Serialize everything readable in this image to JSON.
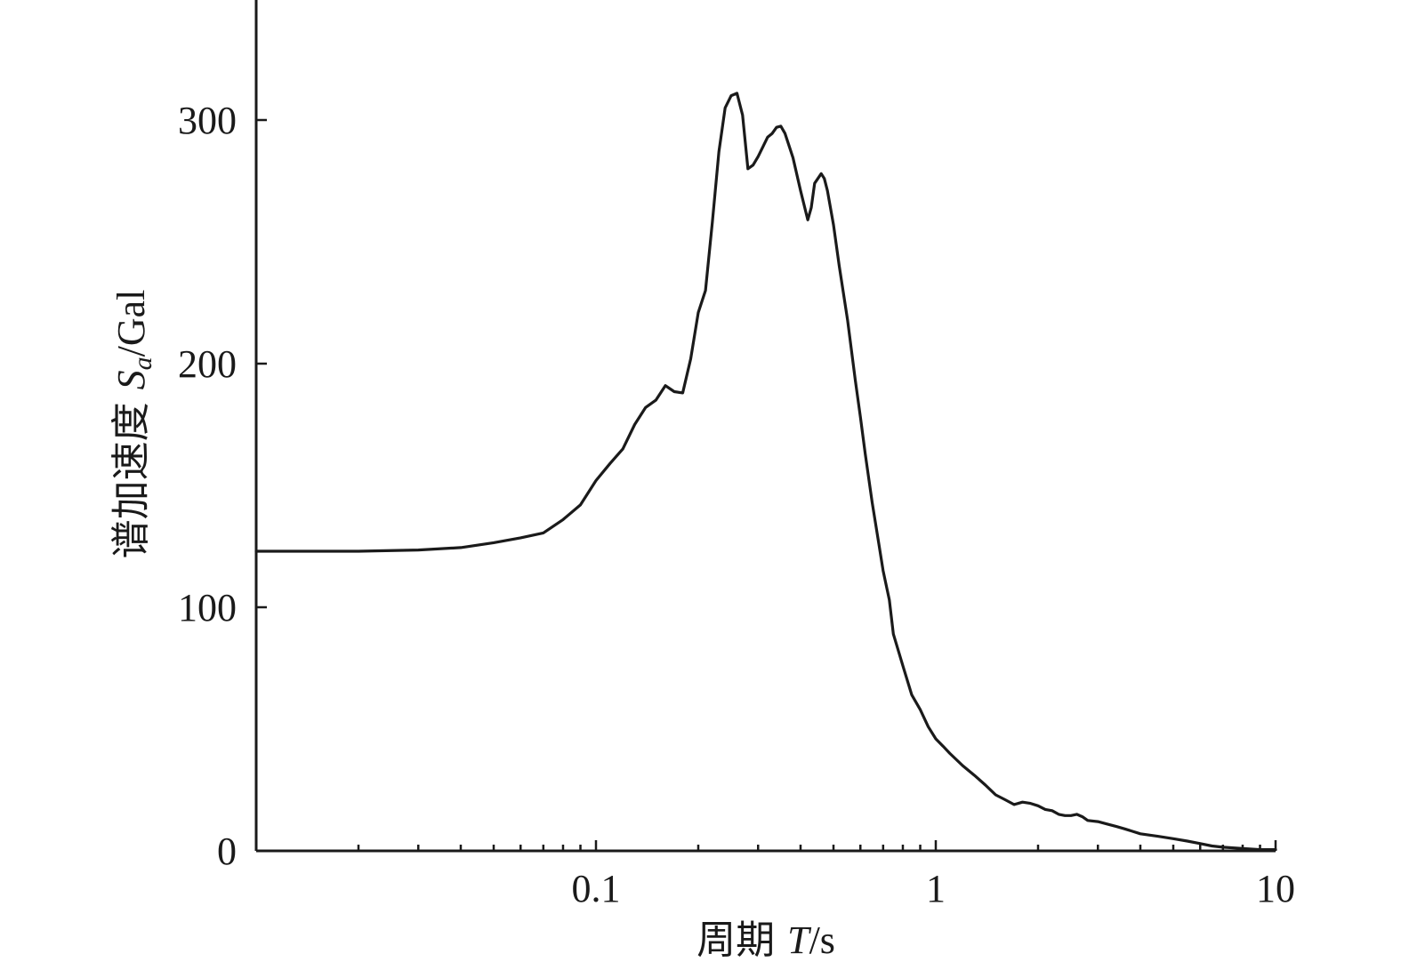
{
  "chart_data": {
    "type": "line",
    "x_scale": "log",
    "xlim": [
      0.01,
      10
    ],
    "ylim": [
      0,
      350
    ],
    "xlabel": {
      "main": "周期 ",
      "var": "T",
      "unit": "/s"
    },
    "ylabel": {
      "main": "谱加速度 ",
      "var": "S",
      "sub": "a",
      "unit": "/Gal"
    },
    "x_major_ticks": [
      {
        "value": 0.1,
        "label": "0.1"
      },
      {
        "value": 1,
        "label": "1"
      },
      {
        "value": 10,
        "label": "10"
      }
    ],
    "y_ticks": [
      {
        "value": 0,
        "label": "0"
      },
      {
        "value": 100,
        "label": "100"
      },
      {
        "value": 200,
        "label": "200"
      },
      {
        "value": 300,
        "label": "300"
      }
    ],
    "grid": false,
    "series": [
      {
        "points": [
          [
            0.01,
            123
          ],
          [
            0.02,
            123
          ],
          [
            0.03,
            123.5
          ],
          [
            0.04,
            124.5
          ],
          [
            0.05,
            126.5
          ],
          [
            0.06,
            128.5
          ],
          [
            0.07,
            130.5
          ],
          [
            0.08,
            136
          ],
          [
            0.09,
            142
          ],
          [
            0.1,
            152
          ],
          [
            0.11,
            159
          ],
          [
            0.12,
            165
          ],
          [
            0.13,
            175
          ],
          [
            0.14,
            182
          ],
          [
            0.15,
            185
          ],
          [
            0.16,
            191
          ],
          [
            0.17,
            188.5
          ],
          [
            0.18,
            188
          ],
          [
            0.19,
            202
          ],
          [
            0.2,
            221
          ],
          [
            0.21,
            230
          ],
          [
            0.22,
            258
          ],
          [
            0.23,
            287
          ],
          [
            0.24,
            305
          ],
          [
            0.25,
            310
          ],
          [
            0.26,
            311
          ],
          [
            0.27,
            302
          ],
          [
            0.28,
            280
          ],
          [
            0.29,
            281.5
          ],
          [
            0.3,
            285
          ],
          [
            0.31,
            289
          ],
          [
            0.32,
            293
          ],
          [
            0.33,
            294.5
          ],
          [
            0.34,
            297
          ],
          [
            0.35,
            297.5
          ],
          [
            0.36,
            294.5
          ],
          [
            0.38,
            284.5
          ],
          [
            0.4,
            271
          ],
          [
            0.42,
            259
          ],
          [
            0.43,
            264
          ],
          [
            0.44,
            274
          ],
          [
            0.46,
            278
          ],
          [
            0.47,
            276
          ],
          [
            0.48,
            271
          ],
          [
            0.5,
            257
          ],
          [
            0.52,
            240
          ],
          [
            0.55,
            218
          ],
          [
            0.58,
            193
          ],
          [
            0.6,
            178
          ],
          [
            0.62,
            163
          ],
          [
            0.65,
            143
          ],
          [
            0.68,
            126
          ],
          [
            0.7,
            115
          ],
          [
            0.73,
            103
          ],
          [
            0.75,
            89
          ],
          [
            0.8,
            76
          ],
          [
            0.85,
            64
          ],
          [
            0.9,
            58
          ],
          [
            0.95,
            51
          ],
          [
            1.0,
            46
          ],
          [
            1.05,
            43
          ],
          [
            1.1,
            40
          ],
          [
            1.2,
            35
          ],
          [
            1.3,
            31
          ],
          [
            1.4,
            27
          ],
          [
            1.5,
            23
          ],
          [
            1.6,
            21
          ],
          [
            1.7,
            19
          ],
          [
            1.8,
            20
          ],
          [
            1.9,
            19.5
          ],
          [
            2.0,
            18.5
          ],
          [
            2.1,
            17
          ],
          [
            2.2,
            16.5
          ],
          [
            2.3,
            15
          ],
          [
            2.4,
            14.5
          ],
          [
            2.5,
            14.5
          ],
          [
            2.6,
            15
          ],
          [
            2.7,
            14
          ],
          [
            2.8,
            12.5
          ],
          [
            3.0,
            12
          ],
          [
            3.2,
            11
          ],
          [
            3.4,
            10
          ],
          [
            3.6,
            9
          ],
          [
            3.8,
            8
          ],
          [
            4.0,
            7
          ],
          [
            4.5,
            6
          ],
          [
            5.0,
            5
          ],
          [
            5.5,
            4
          ],
          [
            6.0,
            3
          ],
          [
            6.5,
            2
          ],
          [
            7.0,
            1.5
          ],
          [
            8.0,
            1
          ],
          [
            9.0,
            0.5
          ],
          [
            10.0,
            0.5
          ]
        ]
      }
    ]
  }
}
